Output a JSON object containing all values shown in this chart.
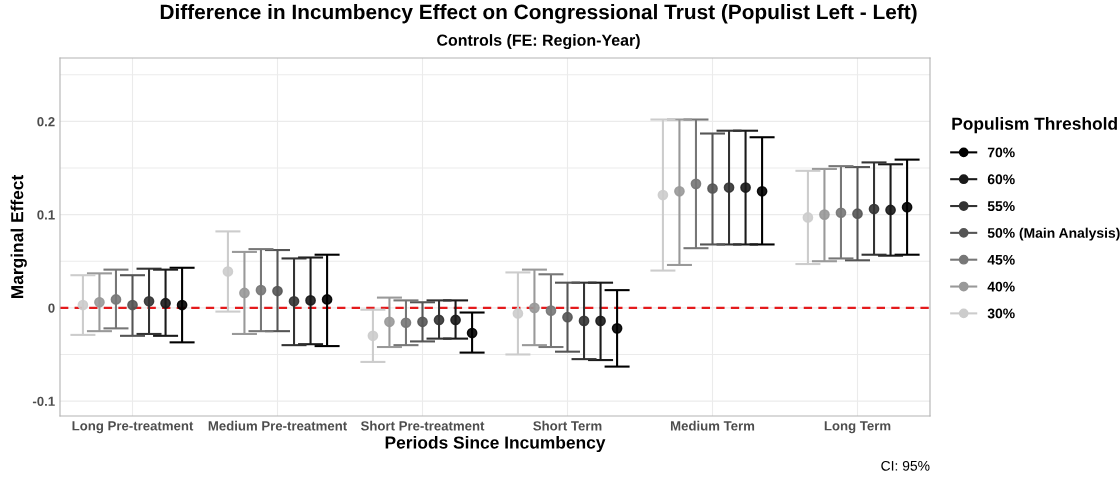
{
  "chart_data": {
    "type": "scatter",
    "title": "Difference in Incumbency Effect on Congressional Trust (Populist Left - Left)",
    "subtitle": "Controls (FE: Region-Year)",
    "xlabel": "Periods Since Incumbency",
    "ylabel": "Marginal Effect",
    "legend_title": "Populism Threshold",
    "categories": [
      "Long Pre-treatment",
      "Medium Pre-treatment",
      "Short Pre-treatment",
      "Short Term",
      "Medium Term",
      "Long Term"
    ],
    "series": [
      {
        "name": "70%",
        "color": "#000000",
        "values": [
          0.003,
          0.009,
          -0.027,
          -0.022,
          0.125,
          0.108
        ],
        "errors": [
          [
            -0.037,
            0.043
          ],
          [
            -0.041,
            0.057
          ],
          [
            -0.048,
            -0.005
          ],
          [
            -0.063,
            0.019
          ],
          [
            0.068,
            0.183
          ],
          [
            0.057,
            0.159
          ]
        ]
      },
      {
        "name": "60%",
        "color": "#1a1a1a",
        "values": [
          0.005,
          0.008,
          -0.013,
          -0.014,
          0.129,
          0.105
        ],
        "errors": [
          [
            -0.03,
            0.041
          ],
          [
            -0.039,
            0.054
          ],
          [
            -0.033,
            0.008
          ],
          [
            -0.056,
            0.027
          ],
          [
            0.068,
            0.19
          ],
          [
            0.056,
            0.154
          ]
        ]
      },
      {
        "name": "55%",
        "color": "#333333",
        "values": [
          0.007,
          0.007,
          -0.013,
          -0.014,
          0.129,
          0.106
        ],
        "errors": [
          [
            -0.028,
            0.042
          ],
          [
            -0.04,
            0.053
          ],
          [
            -0.033,
            0.008
          ],
          [
            -0.055,
            0.027
          ],
          [
            0.068,
            0.19
          ],
          [
            0.057,
            0.156
          ]
        ]
      },
      {
        "name": "50% (Main Analysis)",
        "color": "#555555",
        "values": [
          0.003,
          0.018,
          -0.015,
          -0.01,
          0.128,
          0.101
        ],
        "errors": [
          [
            -0.03,
            0.035
          ],
          [
            -0.025,
            0.062
          ],
          [
            -0.036,
            0.006
          ],
          [
            -0.047,
            0.027
          ],
          [
            0.068,
            0.187
          ],
          [
            0.051,
            0.151
          ]
        ]
      },
      {
        "name": "45%",
        "color": "#777777",
        "values": [
          0.009,
          0.019,
          -0.016,
          -0.003,
          0.133,
          0.102
        ],
        "errors": [
          [
            -0.022,
            0.041
          ],
          [
            -0.025,
            0.063
          ],
          [
            -0.04,
            0.008
          ],
          [
            -0.042,
            0.036
          ],
          [
            0.064,
            0.202
          ],
          [
            0.053,
            0.152
          ]
        ]
      },
      {
        "name": "40%",
        "color": "#999999",
        "values": [
          0.006,
          0.016,
          -0.015,
          0.0,
          0.125,
          0.1
        ],
        "errors": [
          [
            -0.025,
            0.037
          ],
          [
            -0.028,
            0.06
          ],
          [
            -0.042,
            0.011
          ],
          [
            -0.04,
            0.041
          ],
          [
            0.046,
            0.202
          ],
          [
            0.05,
            0.149
          ]
        ]
      },
      {
        "name": "30%",
        "color": "#cccccc",
        "values": [
          0.003,
          0.039,
          -0.03,
          -0.006,
          0.121,
          0.097
        ],
        "errors": [
          [
            -0.029,
            0.035
          ],
          [
            -0.004,
            0.082
          ],
          [
            -0.058,
            -0.002
          ],
          [
            -0.05,
            0.038
          ],
          [
            0.04,
            0.202
          ],
          [
            0.047,
            0.147
          ]
        ]
      }
    ],
    "ylim": [
      -0.116,
      0.268
    ],
    "yticks": [
      {
        "value": -0.1,
        "label": "-0.1"
      },
      {
        "value": -0.05,
        "label": null
      },
      0,
      {
        "value": 0.05,
        "label": null
      },
      0.1,
      {
        "value": 0.15,
        "label": null
      },
      0.2,
      {
        "value": 0.25,
        "label": null
      }
    ],
    "ref_lines": [
      {
        "axis": "y",
        "value": 0,
        "color": "#e41a1c",
        "line_style": "dashed"
      }
    ],
    "annotations": [
      "CI: 95%"
    ],
    "grid": true,
    "legend": "right",
    "marker": "circle"
  }
}
